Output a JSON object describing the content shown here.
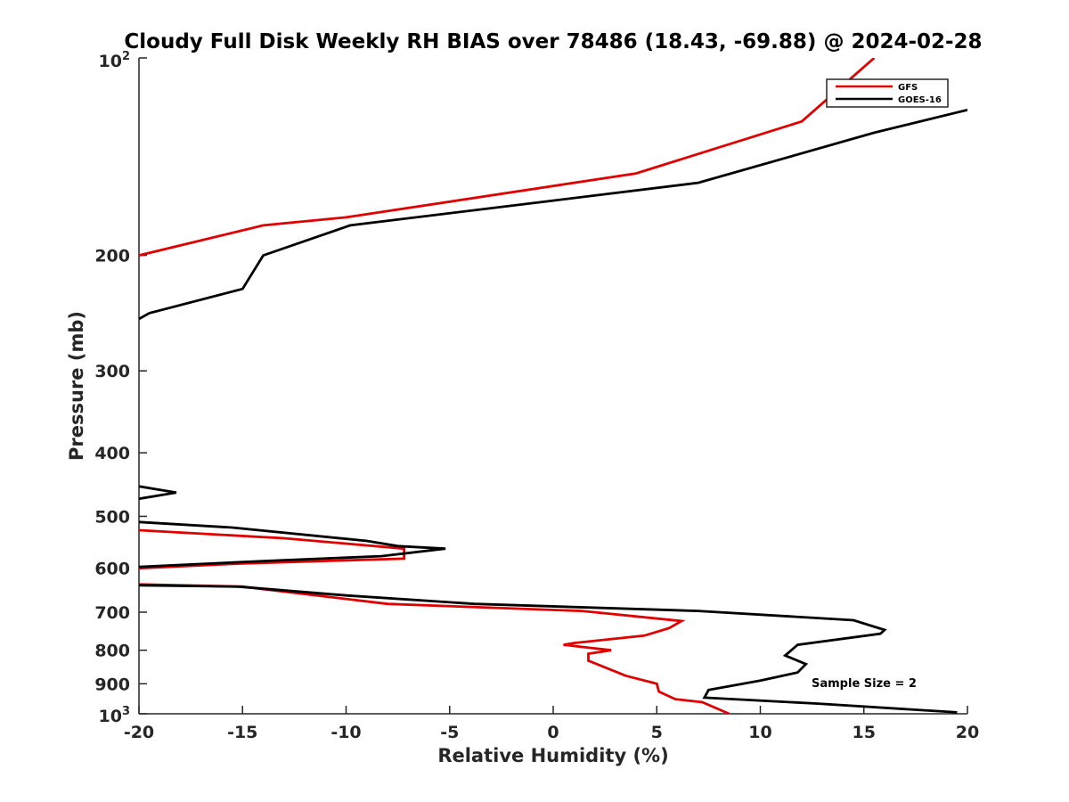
{
  "chart_data": {
    "type": "line",
    "title": "Cloudy Full Disk Weekly RH BIAS over 78486 (18.43, -69.88) @ 2024-02-28",
    "xlabel": "Relative Humidity (%)",
    "ylabel": "Pressure (mb)",
    "xlim": [
      -20,
      20
    ],
    "ylim": [
      100,
      1000
    ],
    "yscale": "log",
    "y_reversed": true,
    "grid": false,
    "legend_position": "top-right",
    "xticks": [
      -20,
      -15,
      -10,
      -5,
      0,
      5,
      10,
      15,
      20
    ],
    "xtick_labels": [
      "-20",
      "-15",
      "-10",
      "-5",
      "0",
      "5",
      "10",
      "15",
      "20"
    ],
    "yticks": [
      200,
      300,
      400,
      500,
      600,
      700,
      800,
      900
    ],
    "ytick_labels": [
      "200",
      "300",
      "400",
      "500",
      "600",
      "700",
      "800",
      "900"
    ],
    "ytick_min_base": "10",
    "ytick_min_exp": "2",
    "ytick_max_base": "10",
    "ytick_max_exp": "3",
    "annotation": "Sample Size = 2",
    "series": [
      {
        "name": "GFS",
        "color": "#e00000",
        "segments": [
          [
            [
              15.5,
              100
            ],
            [
              12,
              125
            ],
            [
              4,
              150
            ],
            [
              -10,
              175
            ],
            [
              -14,
              180
            ],
            [
              -20,
              200
            ]
          ],
          [
            [
              -20,
              525
            ],
            [
              -13,
              540
            ],
            [
              -7.2,
              560
            ],
            [
              -7.2,
              580
            ],
            [
              -15,
              590
            ],
            [
              -20,
              600
            ]
          ],
          [
            [
              -20,
              635
            ],
            [
              -15,
              640
            ],
            [
              -8,
              680
            ],
            [
              1.4,
              697
            ],
            [
              6.2,
              722
            ],
            [
              5.6,
              740
            ],
            [
              4.4,
              760
            ],
            [
              1,
              780
            ],
            [
              0.5,
              785
            ],
            [
              2.8,
              800
            ],
            [
              1.7,
              810
            ],
            [
              1.7,
              830
            ],
            [
              3.5,
              875
            ],
            [
              5,
              900
            ],
            [
              5.1,
              925
            ],
            [
              5.9,
              950
            ],
            [
              7.2,
              960
            ],
            [
              8.5,
              1000
            ]
          ]
        ]
      },
      {
        "name": "GOES-16",
        "color": "#000000",
        "segments": [
          [
            [
              20,
              120
            ],
            [
              15.5,
              130
            ],
            [
              7,
              155
            ],
            [
              0,
              165
            ],
            [
              -9.8,
              180
            ],
            [
              -14,
              200
            ],
            [
              -15,
              225
            ],
            [
              -19.5,
              245
            ],
            [
              -20,
              250
            ]
          ],
          [
            [
              -20,
              450
            ],
            [
              -18.2,
              460
            ],
            [
              -20,
              470
            ]
          ],
          [
            [
              -20,
              510
            ],
            [
              -15.5,
              520
            ],
            [
              -9,
              545
            ],
            [
              -7.5,
              555
            ],
            [
              -5.2,
              560
            ],
            [
              -8.3,
              575
            ],
            [
              -14,
              585
            ],
            [
              -20,
              597
            ]
          ],
          [
            [
              -20,
              637
            ],
            [
              -15.2,
              640
            ],
            [
              -10,
              660
            ],
            [
              -3.8,
              680
            ],
            [
              7,
              697
            ],
            [
              14.5,
              720
            ],
            [
              16,
              745
            ],
            [
              15.8,
              755
            ],
            [
              11.8,
              785
            ],
            [
              11.2,
              815
            ],
            [
              12.2,
              840
            ],
            [
              11.8,
              865
            ],
            [
              10,
              890
            ],
            [
              7.5,
              920
            ],
            [
              7.3,
              945
            ],
            [
              12.8,
              965
            ],
            [
              19.5,
              995
            ]
          ]
        ]
      }
    ]
  }
}
